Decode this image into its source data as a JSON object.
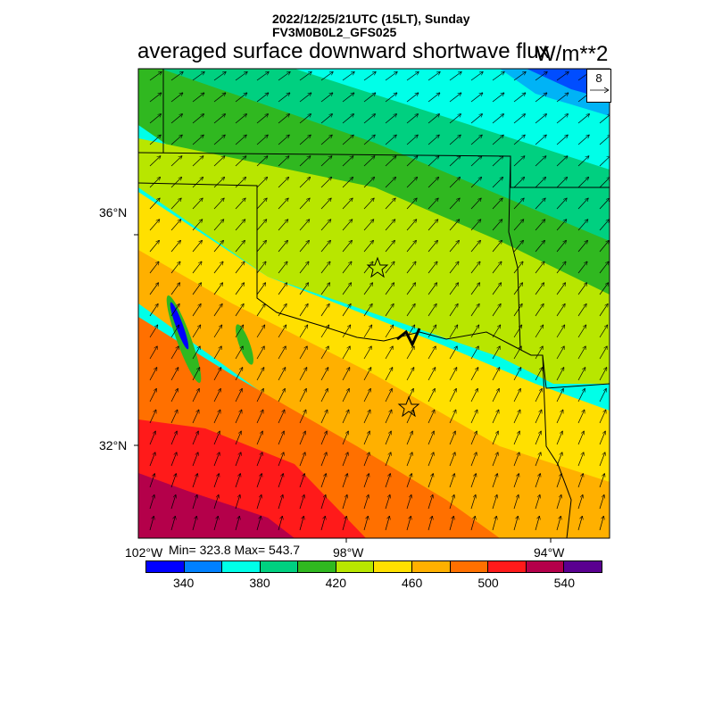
{
  "header": {
    "datetime": "2022/12/25/21UTC (15LT), Sunday",
    "model": "FV3M0B0L2_GFS025",
    "title": "averaged surface downward shortwave flux",
    "units": "W/m**2"
  },
  "map": {
    "region": "Texas / Oklahoma / Arkansas / Louisiana",
    "lat_ticks": [
      "36°N",
      "32°N"
    ],
    "lon_ticks": [
      "102°W",
      "98°W",
      "94°W"
    ],
    "wind_vector_reference": "8",
    "min_max": "Min= 323.8 Max= 543.7",
    "markers": [
      "star",
      "star"
    ]
  },
  "colorbar": {
    "colors": [
      "#0000ff",
      "#0080ff",
      "#00ffe8",
      "#00d080",
      "#30b820",
      "#b8e600",
      "#ffe000",
      "#ffb000",
      "#ff7000",
      "#ff1a1a",
      "#b4004a",
      "#5a0090"
    ],
    "labels": [
      "340",
      "380",
      "420",
      "460",
      "500",
      "540"
    ],
    "field_range": [
      323.8,
      543.7
    ]
  }
}
